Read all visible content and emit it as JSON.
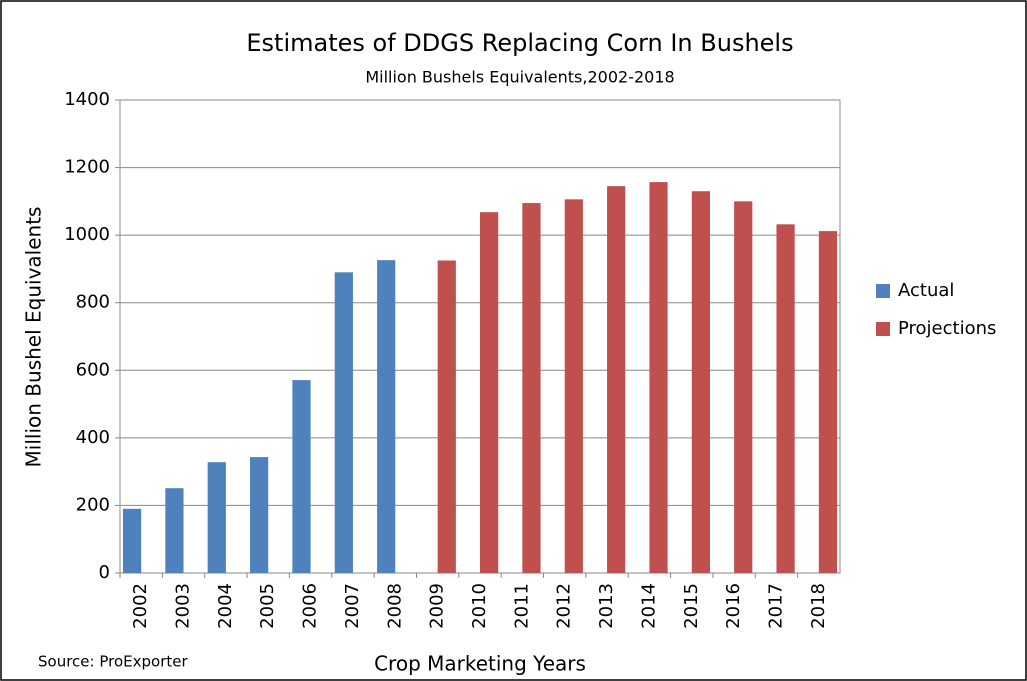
{
  "chart_data": {
    "type": "bar",
    "title": "Estimates of DDGS Replacing Corn In Bushels",
    "subtitle": "Million Bushels Equivalents,2002-2018",
    "y_label": "Million Bushel Equivalents",
    "x_label": "Crop Marketing Years",
    "source": "Source: ProExporter",
    "categories": [
      "2002",
      "2003",
      "2004",
      "2005",
      "2006",
      "2007",
      "2008",
      "2009",
      "2010",
      "2011",
      "2012",
      "2013",
      "2014",
      "2015",
      "2016",
      "2017",
      "2018"
    ],
    "series": [
      {
        "name": "Actual",
        "color": "#4f81bd",
        "values": [
          190,
          251,
          328,
          343,
          571,
          890,
          926,
          null,
          null,
          null,
          null,
          null,
          null,
          null,
          null,
          null,
          null
        ]
      },
      {
        "name": "Projections",
        "color": "#c0504d",
        "values": [
          null,
          null,
          null,
          null,
          null,
          null,
          null,
          925,
          1068,
          1095,
          1106,
          1145,
          1157,
          1130,
          1100,
          1032,
          1012
        ]
      }
    ],
    "ylim": [
      0,
      1400
    ],
    "yticks": [
      0,
      200,
      400,
      600,
      800,
      1000,
      1200,
      1400
    ],
    "grid": true,
    "legend": "right"
  }
}
